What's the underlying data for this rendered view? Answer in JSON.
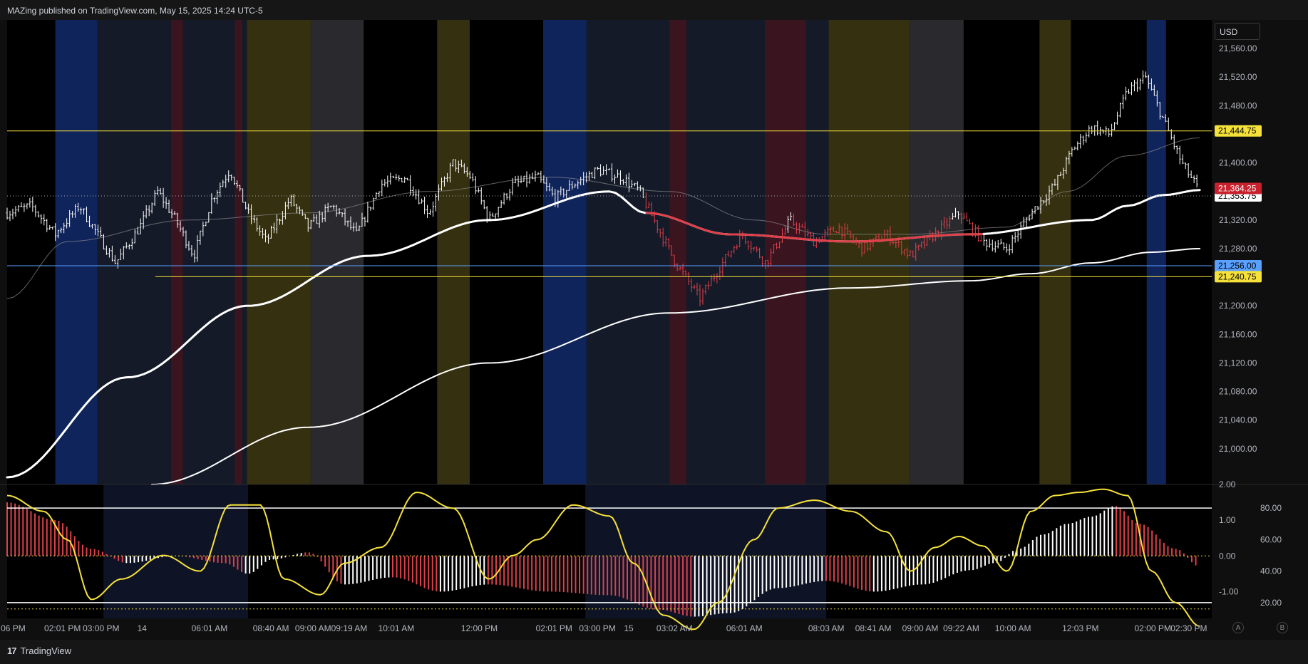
{
  "header": {
    "title": "MAZing published on TradingView.com, May 15, 2025 14:24 UTC-5"
  },
  "toolbar": {
    "currency": "USD",
    "btn_a": "A",
    "btn_b": "B"
  },
  "footer": {
    "brand": "TradingView"
  },
  "colors": {
    "bg": "#000000",
    "blue_zone": "#10245c",
    "red_zone": "#3a1520",
    "yellow_zone": "#35300f",
    "gray_zone": "#2a2a2e",
    "navy_zone": "#141a28",
    "price_red": "#e0404a",
    "level_yellow": "#f5e13a",
    "level_blue": "#5aa0ff"
  },
  "chart_data": [
    {
      "type": "candlestick",
      "title": "",
      "currency": "USD",
      "ylim": [
        20950,
        21600
      ],
      "price_ticks": [
        "21,560.00",
        "21,520.00",
        "21,480.00",
        "21,400.00",
        "21,320.00",
        "21,280.00",
        "21,200.00",
        "21,160.00",
        "21,120.00",
        "21,080.00",
        "21,040.00",
        "21,000.00"
      ],
      "price_tick_values": [
        21560,
        21520,
        21480,
        21400,
        21320,
        21280,
        21200,
        21160,
        21120,
        21080,
        21040,
        21000
      ],
      "time_labels": [
        "06 PM",
        "02:01 PM",
        "03:00 PM",
        "14",
        "06:01 AM",
        "08:40 AM",
        "09:00 AM",
        "09:19 AM",
        "10:01 AM",
        "12:00 PM",
        "02:01 PM",
        "03:00 PM",
        "15",
        "03:02 AM",
        "06:01 AM",
        "08:03 AM",
        "08:41 AM",
        "09:00 AM",
        "09:22 AM",
        "10:00 AM",
        "12:03 PM",
        "02:00 PM",
        "02:30 PM"
      ],
      "time_label_frac": [
        0.005,
        0.046,
        0.078,
        0.112,
        0.168,
        0.219,
        0.254,
        0.284,
        0.323,
        0.392,
        0.454,
        0.49,
        0.516,
        0.554,
        0.612,
        0.68,
        0.719,
        0.758,
        0.792,
        0.835,
        0.891,
        0.951,
        0.981
      ],
      "levels": [
        {
          "price": 21444.75,
          "label": "21,444.75",
          "color": "#f5e13a"
        },
        {
          "price": 21256.0,
          "label": "21,256.00",
          "color": "#5aa0ff"
        },
        {
          "price": 21240.75,
          "label": "21,240.75",
          "color": "#f5e13a"
        }
      ],
      "last_price": {
        "price": 21364.25,
        "label": "21,364.25"
      },
      "prev_close": {
        "price": 21353.75,
        "label": "21,353.75"
      },
      "close_path": {
        "t": [
          0.0,
          0.02,
          0.04,
          0.06,
          0.075,
          0.09,
          0.11,
          0.125,
          0.14,
          0.155,
          0.17,
          0.185,
          0.2,
          0.215,
          0.235,
          0.25,
          0.27,
          0.29,
          0.31,
          0.33,
          0.35,
          0.37,
          0.385,
          0.4,
          0.42,
          0.44,
          0.455,
          0.47,
          0.49,
          0.51,
          0.525,
          0.54,
          0.555,
          0.575,
          0.59,
          0.61,
          0.63,
          0.65,
          0.67,
          0.69,
          0.71,
          0.73,
          0.75,
          0.77,
          0.79,
          0.81,
          0.83,
          0.85,
          0.87,
          0.885,
          0.9,
          0.915,
          0.93,
          0.945,
          0.96,
          0.975,
          0.99
        ],
        "v": [
          21330,
          21340,
          21300,
          21340,
          21300,
          21260,
          21310,
          21360,
          21320,
          21270,
          21350,
          21390,
          21330,
          21290,
          21350,
          21310,
          21340,
          21300,
          21370,
          21380,
          21330,
          21400,
          21380,
          21320,
          21370,
          21380,
          21350,
          21370,
          21390,
          21380,
          21360,
          21310,
          21260,
          21210,
          21250,
          21300,
          21260,
          21320,
          21290,
          21310,
          21280,
          21300,
          21270,
          21300,
          21330,
          21290,
          21280,
          21330,
          21370,
          21420,
          21450,
          21440,
          21500,
          21520,
          21460,
          21400,
          21360
        ]
      },
      "series": [
        {
          "name": "",
          "color": "#ffffff",
          "width": 3,
          "x": [
            0,
            0.1,
            0.2,
            0.3,
            0.4,
            0.5,
            0.53,
            0.6,
            0.7,
            0.8,
            0.9,
            0.93,
            0.96,
            0.99
          ],
          "y": [
            20960,
            21100,
            21200,
            21270,
            21320,
            21360,
            21330,
            21300,
            21290,
            21300,
            21320,
            21340,
            21355,
            21362
          ]
        },
        {
          "name": "",
          "color": "#ffffff",
          "width": 2,
          "x": [
            0.12,
            0.25,
            0.4,
            0.55,
            0.7,
            0.8,
            0.85,
            0.9,
            0.95,
            0.99
          ],
          "y": [
            20950,
            21030,
            21120,
            21190,
            21225,
            21235,
            21245,
            21260,
            21275,
            21280
          ]
        },
        {
          "name": "",
          "color": "#8a8a8a",
          "width": 1,
          "x": [
            0,
            0.05,
            0.15,
            0.25,
            0.35,
            0.45,
            0.55,
            0.62,
            0.68,
            0.75,
            0.83,
            0.88,
            0.93,
            0.99
          ],
          "y": [
            21210,
            21290,
            21320,
            21330,
            21360,
            21380,
            21360,
            21320,
            21300,
            21300,
            21310,
            21360,
            21410,
            21435
          ]
        }
      ],
      "red_segment_x": [
        0.53,
        0.81
      ],
      "zones": [
        {
          "x0": 0.04,
          "x1": 0.075,
          "color": "#10245c"
        },
        {
          "x0": 0.075,
          "x1": 0.136,
          "color": "#141a28"
        },
        {
          "x0": 0.136,
          "x1": 0.146,
          "color": "#3a1520"
        },
        {
          "x0": 0.146,
          "x1": 0.199,
          "color": "#141a28"
        },
        {
          "x0": 0.189,
          "x1": 0.195,
          "color": "#3a1520"
        },
        {
          "x0": 0.199,
          "x1": 0.252,
          "color": "#35300f"
        },
        {
          "x0": 0.252,
          "x1": 0.296,
          "color": "#2a2a2e"
        },
        {
          "x0": 0.357,
          "x1": 0.384,
          "color": "#35300f"
        },
        {
          "x0": 0.445,
          "x1": 0.481,
          "color": "#10245c"
        },
        {
          "x0": 0.481,
          "x1": 0.55,
          "color": "#141a28"
        },
        {
          "x0": 0.55,
          "x1": 0.564,
          "color": "#3a1520"
        },
        {
          "x0": 0.564,
          "x1": 0.629,
          "color": "#141a28"
        },
        {
          "x0": 0.629,
          "x1": 0.663,
          "color": "#3a1520"
        },
        {
          "x0": 0.663,
          "x1": 0.682,
          "color": "#141a28"
        },
        {
          "x0": 0.682,
          "x1": 0.749,
          "color": "#35300f"
        },
        {
          "x0": 0.749,
          "x1": 0.794,
          "color": "#2a2a2e"
        },
        {
          "x0": 0.857,
          "x1": 0.883,
          "color": "#35300f"
        },
        {
          "x0": 0.946,
          "x1": 0.962,
          "color": "#10245c"
        }
      ]
    },
    {
      "type": "oscillator",
      "title": "",
      "left_ticks": [
        "2.00",
        "1.00",
        "0.00",
        "-1.00"
      ],
      "left_tick_values": [
        2,
        1,
        0,
        -1
      ],
      "right_ticks": [
        "80.00",
        "60.00",
        "40.00",
        "20.00"
      ],
      "right_tick_values": [
        80,
        60,
        40,
        20
      ],
      "ylim_left": [
        -1.75,
        2.0
      ],
      "bands": [
        80,
        20
      ],
      "histogram": {
        "t": [
          0,
          0.04,
          0.07,
          0.1,
          0.14,
          0.18,
          0.2,
          0.22,
          0.25,
          0.28,
          0.32,
          0.36,
          0.4,
          0.45,
          0.5,
          0.54,
          0.57,
          0.6,
          0.64,
          0.68,
          0.72,
          0.76,
          0.8,
          0.82,
          0.84,
          0.86,
          0.88,
          0.9,
          0.92,
          0.94,
          0.97,
          0.99
        ],
        "v": [
          1.5,
          1.0,
          0.2,
          -0.2,
          0.0,
          -0.2,
          -0.5,
          -0.1,
          0.1,
          -0.8,
          -0.6,
          -1.0,
          -0.8,
          -1.0,
          -1.1,
          -1.5,
          -1.7,
          -1.6,
          -0.9,
          -0.7,
          -1.0,
          -0.8,
          -0.4,
          -0.2,
          0.2,
          0.6,
          0.9,
          1.1,
          1.4,
          0.9,
          0.2,
          -0.3
        ]
      },
      "line": {
        "t": [
          0,
          0.03,
          0.05,
          0.07,
          0.095,
          0.13,
          0.16,
          0.185,
          0.21,
          0.23,
          0.26,
          0.28,
          0.31,
          0.34,
          0.37,
          0.4,
          0.42,
          0.44,
          0.47,
          0.5,
          0.52,
          0.545,
          0.57,
          0.59,
          0.62,
          0.64,
          0.67,
          0.7,
          0.73,
          0.75,
          0.77,
          0.79,
          0.81,
          0.83,
          0.85,
          0.87,
          0.89,
          0.91,
          0.93,
          0.95,
          0.97,
          0.99
        ],
        "v": [
          88,
          78,
          60,
          22,
          35,
          50,
          40,
          82,
          82,
          35,
          25,
          45,
          55,
          90,
          80,
          35,
          50,
          60,
          82,
          75,
          45,
          12,
          3,
          20,
          60,
          80,
          85,
          78,
          65,
          40,
          55,
          62,
          56,
          40,
          78,
          88,
          90,
          92,
          88,
          40,
          20,
          5
        ]
      },
      "line_color": "#f5e13a",
      "zones": [
        {
          "x0": 0.08,
          "x1": 0.2,
          "color": "#0e1426"
        },
        {
          "x0": 0.48,
          "x1": 0.68,
          "color": "#0e1426"
        }
      ]
    }
  ]
}
